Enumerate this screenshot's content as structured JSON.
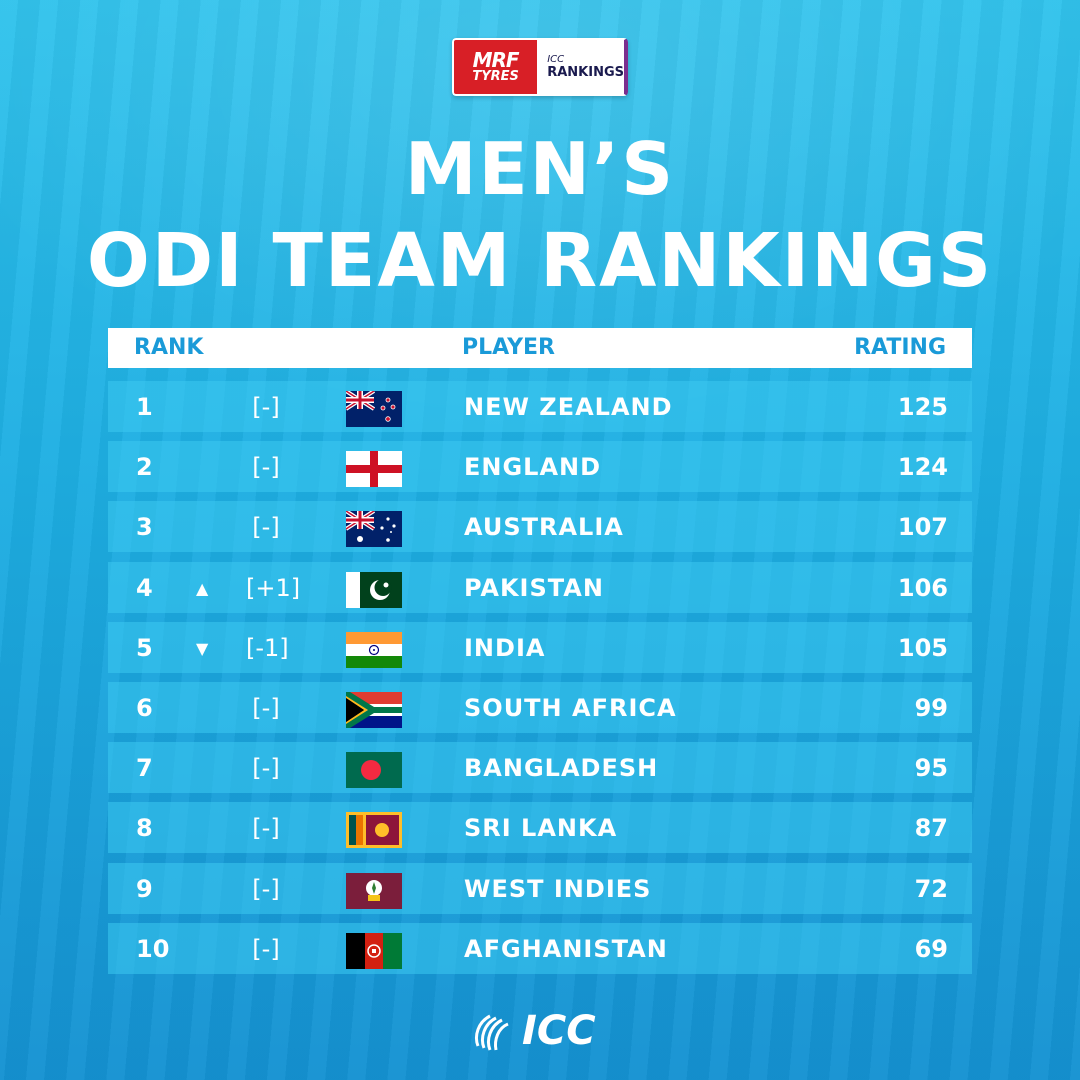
{
  "sponsor": {
    "brand_top": "MRF",
    "brand_bottom": "TYRES",
    "icc_small": "ICC",
    "rankings": "RANKINGS"
  },
  "title": {
    "line1": "MEN’S",
    "line2": "ODI TEAM RANKINGS"
  },
  "table": {
    "headers": {
      "rank": "RANK",
      "player": "PLAYER",
      "rating": "RATING"
    },
    "rows": [
      {
        "rank": "1",
        "arrow": "",
        "change": "[-]",
        "flag": "new-zealand-flag",
        "team": "NEW ZEALAND",
        "rating": "125"
      },
      {
        "rank": "2",
        "arrow": "",
        "change": "[-]",
        "flag": "england-flag",
        "team": "ENGLAND",
        "rating": "124"
      },
      {
        "rank": "3",
        "arrow": "",
        "change": "[-]",
        "flag": "australia-flag",
        "team": "AUSTRALIA",
        "rating": "107"
      },
      {
        "rank": "4",
        "arrow": "▲",
        "change": "[+1]",
        "flag": "pakistan-flag",
        "team": "PAKISTAN",
        "rating": "106"
      },
      {
        "rank": "5",
        "arrow": "▼",
        "change": "[-1]",
        "flag": "india-flag",
        "team": "INDIA",
        "rating": "105"
      },
      {
        "rank": "6",
        "arrow": "",
        "change": "[-]",
        "flag": "south-africa-flag",
        "team": "SOUTH AFRICA",
        "rating": "99"
      },
      {
        "rank": "7",
        "arrow": "",
        "change": "[-]",
        "flag": "bangladesh-flag",
        "team": "BANGLADESH",
        "rating": "95"
      },
      {
        "rank": "8",
        "arrow": "",
        "change": "[-]",
        "flag": "sri-lanka-flag",
        "team": "SRI LANKA",
        "rating": "87"
      },
      {
        "rank": "9",
        "arrow": "",
        "change": "[-]",
        "flag": "west-indies-flag",
        "team": "WEST INDIES",
        "rating": "72"
      },
      {
        "rank": "10",
        "arrow": "",
        "change": "[-]",
        "flag": "afghanistan-flag",
        "team": "AFGHANISTAN",
        "rating": "69"
      }
    ]
  },
  "footer": {
    "logo_text": "ICC"
  },
  "colors": {
    "accent": "#1a9ad8",
    "row_bg": "#3cc8f0",
    "background_top": "#2ec2ec",
    "background_bottom": "#1592d2"
  }
}
